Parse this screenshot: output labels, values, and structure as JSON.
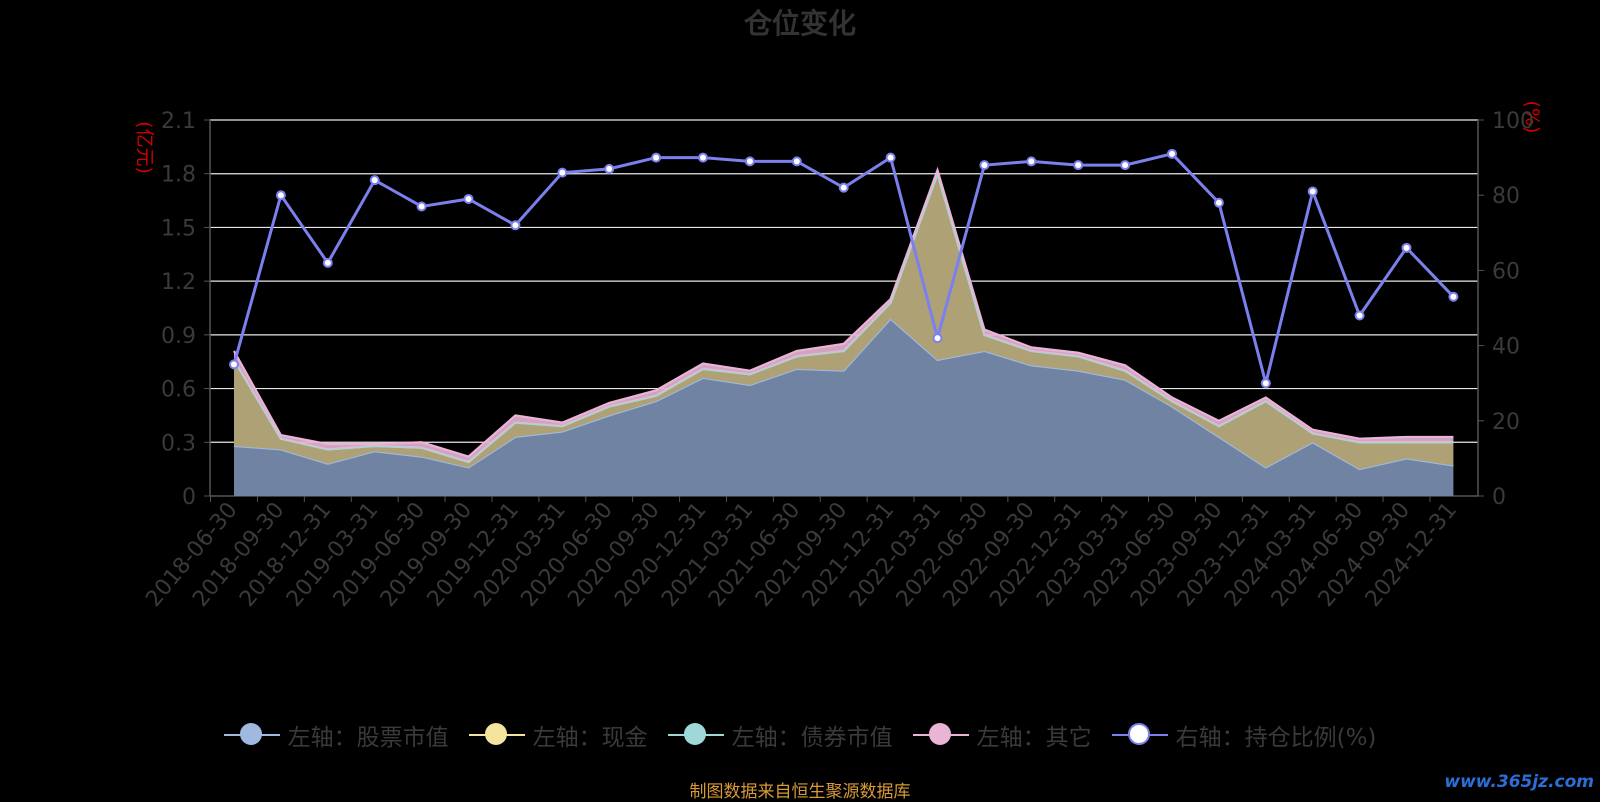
{
  "title": "仓位变化",
  "source_note": "制图数据来自恒生聚源数据库",
  "watermark": "www.365jz.com",
  "chart_data": {
    "type": "area",
    "title": "仓位变化",
    "x": [
      "2018-06-30",
      "2018-09-30",
      "2018-12-31",
      "2019-03-31",
      "2019-06-30",
      "2019-09-30",
      "2019-12-31",
      "2020-03-31",
      "2020-06-30",
      "2020-09-30",
      "2020-12-31",
      "2021-03-31",
      "2021-06-30",
      "2021-09-30",
      "2021-12-31",
      "2022-03-31",
      "2022-06-30",
      "2022-09-30",
      "2022-12-31",
      "2023-03-31",
      "2023-06-30",
      "2023-09-30",
      "2023-12-31",
      "2024-03-31",
      "2024-06-30",
      "2024-09-30",
      "2024-12-31"
    ],
    "y_left": {
      "unit": "(亿元)",
      "ylim": [
        0,
        2.1
      ],
      "ticks": [
        "0",
        "0.3",
        "0.6",
        "0.9",
        "1.2",
        "1.5",
        "1.8",
        "2.1"
      ]
    },
    "y_right": {
      "unit": "(%)",
      "ylim": [
        0,
        100
      ],
      "ticks": [
        "0",
        "20",
        "40",
        "60",
        "80",
        "100"
      ]
    },
    "grid": true,
    "legend_position": "bottom",
    "series": [
      {
        "name": "左轴：股票市值",
        "axis": "left",
        "type": "area",
        "color": "#a0b9e0",
        "values": [
          0.28,
          0.26,
          0.18,
          0.25,
          0.22,
          0.16,
          0.33,
          0.36,
          0.45,
          0.53,
          0.66,
          0.62,
          0.71,
          0.7,
          0.99,
          0.76,
          0.81,
          0.73,
          0.7,
          0.65,
          0.5,
          0.33,
          0.16,
          0.3,
          0.15,
          0.21,
          0.17
        ]
      },
      {
        "name": "左轴：现金",
        "axis": "left",
        "type": "area",
        "color": "#f7e3a0",
        "values": [
          0.48,
          0.06,
          0.08,
          0.03,
          0.05,
          0.03,
          0.08,
          0.03,
          0.05,
          0.03,
          0.05,
          0.06,
          0.07,
          0.11,
          0.09,
          1.04,
          0.09,
          0.08,
          0.08,
          0.05,
          0.03,
          0.06,
          0.37,
          0.05,
          0.15,
          0.09,
          0.13
        ]
      },
      {
        "name": "左轴：债券市值",
        "axis": "left",
        "type": "area",
        "color": "#9ed8d8",
        "values": [
          0,
          0,
          0,
          0,
          0,
          0,
          0,
          0,
          0,
          0,
          0,
          0,
          0,
          0,
          0,
          0,
          0,
          0,
          0,
          0,
          0,
          0,
          0,
          0,
          0,
          0,
          0
        ]
      },
      {
        "name": "左轴：其它",
        "axis": "left",
        "type": "area",
        "color": "#e9b4d6",
        "values": [
          0.05,
          0.02,
          0.03,
          0.01,
          0.03,
          0.03,
          0.04,
          0.02,
          0.02,
          0.03,
          0.03,
          0.02,
          0.03,
          0.04,
          0.02,
          0.02,
          0.03,
          0.02,
          0.02,
          0.03,
          0.02,
          0.03,
          0.02,
          0.02,
          0.02,
          0.03,
          0.03
        ]
      },
      {
        "name": "右轴：持仓比例(%)",
        "axis": "right",
        "type": "line",
        "color": "#7b80ee",
        "values": [
          35,
          80,
          62,
          84,
          77,
          79,
          72,
          86,
          87,
          90,
          90,
          89,
          89,
          82,
          90,
          42,
          88,
          89,
          88,
          88,
          91,
          78,
          30,
          81,
          48,
          66,
          53
        ]
      }
    ]
  }
}
